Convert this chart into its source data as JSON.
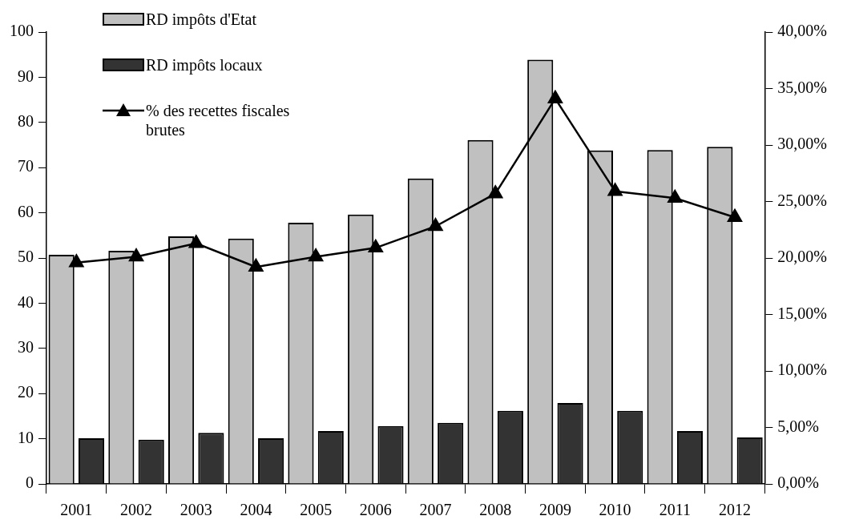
{
  "chart_data": {
    "type": "bar",
    "categories": [
      "2001",
      "2002",
      "2003",
      "2004",
      "2005",
      "2006",
      "2007",
      "2008",
      "2009",
      "2010",
      "2011",
      "2012"
    ],
    "series": [
      {
        "name": "RD impôts d'Etat",
        "color": "#c0c0c0",
        "values": [
          50.7,
          51.6,
          54.8,
          54.3,
          57.8,
          59.6,
          67.6,
          76.1,
          93.9,
          73.8,
          73.9,
          74.6
        ]
      },
      {
        "name": "RD impôts locaux",
        "color": "#333333",
        "values": [
          10.1,
          9.8,
          11.3,
          10.1,
          11.7,
          12.8,
          13.5,
          16.2,
          17.9,
          16.2,
          11.7,
          10.3
        ]
      },
      {
        "name": "% des recettes fiscales brutes",
        "type": "line",
        "axis": "y2",
        "color": "#000000",
        "marker": "triangle",
        "values": [
          19.6,
          20.1,
          21.3,
          19.2,
          20.1,
          20.9,
          22.8,
          25.7,
          34.1,
          25.9,
          25.3,
          23.6
        ]
      }
    ],
    "ylim": [
      0,
      100
    ],
    "yticks": [
      0,
      10,
      20,
      30,
      40,
      50,
      60,
      70,
      80,
      90,
      100
    ],
    "y2lim": [
      0,
      40
    ],
    "y2ticks": [
      {
        "value": 0,
        "label": "0,00%"
      },
      {
        "value": 5,
        "label": "5,00%"
      },
      {
        "value": 10,
        "label": "10,00%"
      },
      {
        "value": 15,
        "label": "15,00%"
      },
      {
        "value": 20,
        "label": "20,00%"
      },
      {
        "value": 25,
        "label": "25,00%"
      },
      {
        "value": 30,
        "label": "30,00%"
      },
      {
        "value": 35,
        "label": "35,00%"
      },
      {
        "value": 40,
        "label": "40,00%"
      }
    ],
    "grid": false,
    "legend": "top left"
  }
}
